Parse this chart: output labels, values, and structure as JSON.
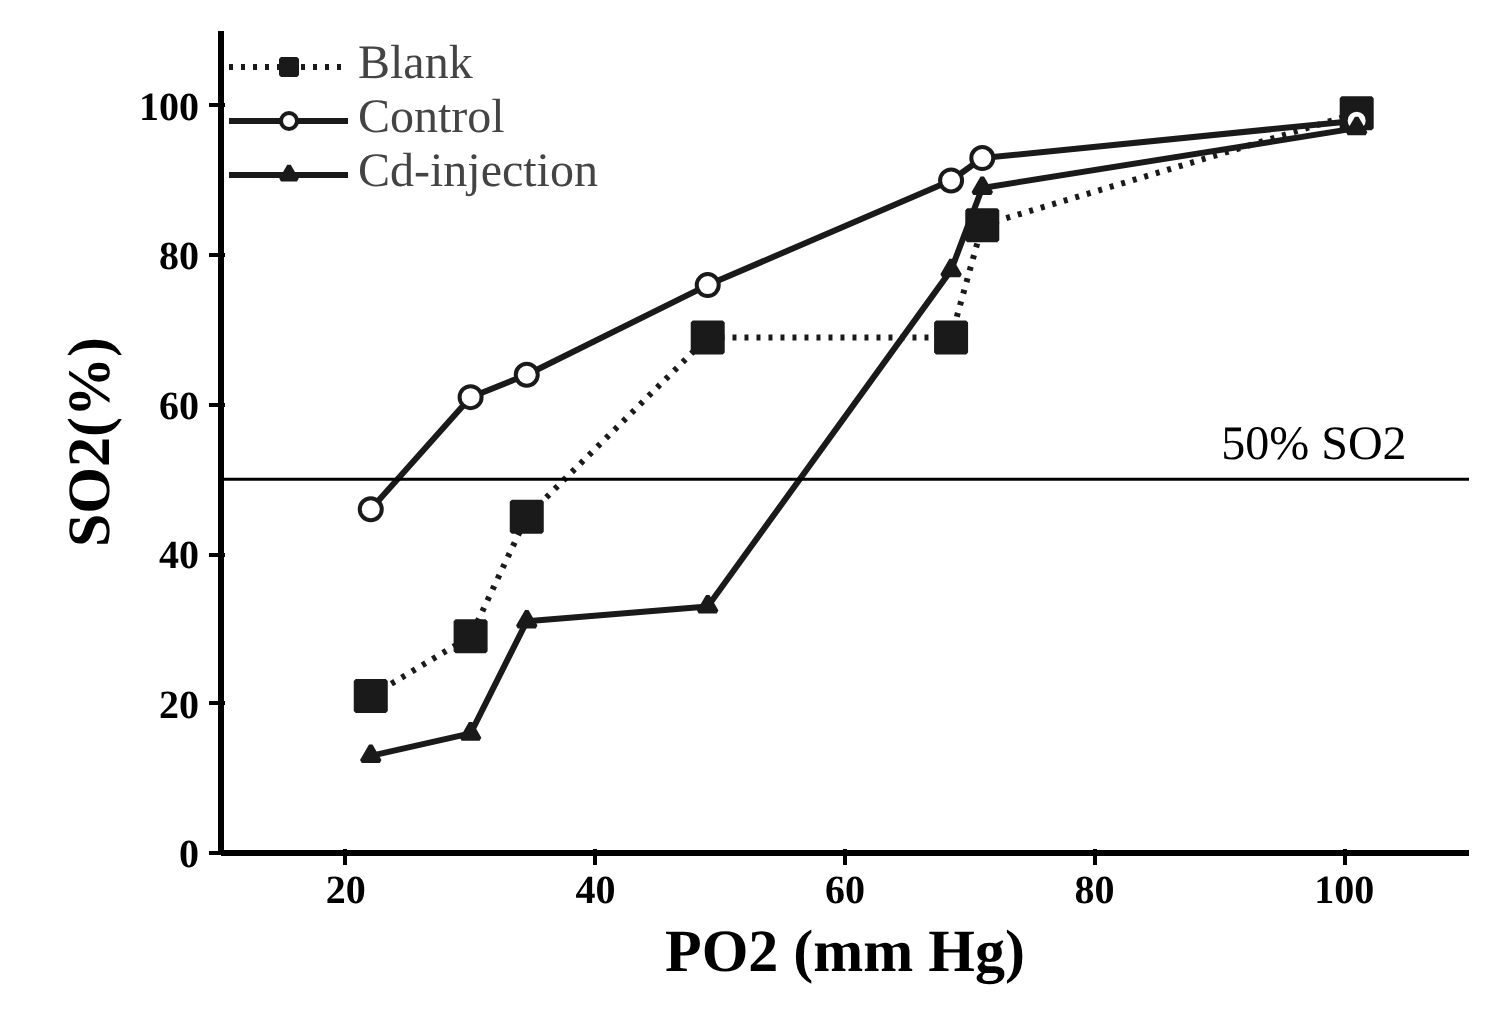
{
  "chart_data": {
    "type": "line",
    "xlabel": "PO2 (mm Hg)",
    "ylabel": "SO2(%)",
    "xlim": [
      10,
      110
    ],
    "xticks": [
      20,
      40,
      60,
      80,
      100
    ],
    "ylim": [
      0,
      110
    ],
    "yticks": [
      0,
      20,
      40,
      60,
      80,
      100
    ],
    "grid": false,
    "legend": "top left",
    "ref_lines": [
      {
        "axis": "y",
        "value": 50,
        "label": "50% SO2",
        "color": "#000000",
        "line_style": "solid"
      }
    ],
    "series": [
      {
        "name": "Blank",
        "color": "#1a1a1a",
        "marker": "square",
        "line_style": "dotted",
        "x": [
          22,
          30,
          34.5,
          49,
          68.5,
          71,
          101
        ],
        "values": [
          21,
          29,
          45,
          69,
          69,
          84,
          99
        ]
      },
      {
        "name": "Control",
        "color": "#1a1a1a",
        "marker": "circle",
        "line_style": "solid",
        "x": [
          22,
          30,
          34.5,
          49,
          68.5,
          71,
          101
        ],
        "values": [
          46,
          61,
          64,
          76,
          90,
          93,
          98
        ]
      },
      {
        "name": "Cd-injection",
        "color": "#1a1a1a",
        "marker": "triangle",
        "line_style": "solid",
        "x": [
          22,
          30,
          34.5,
          49,
          68.5,
          71,
          101
        ],
        "values": [
          13,
          16,
          31,
          33,
          78,
          89,
          97
        ]
      }
    ]
  }
}
